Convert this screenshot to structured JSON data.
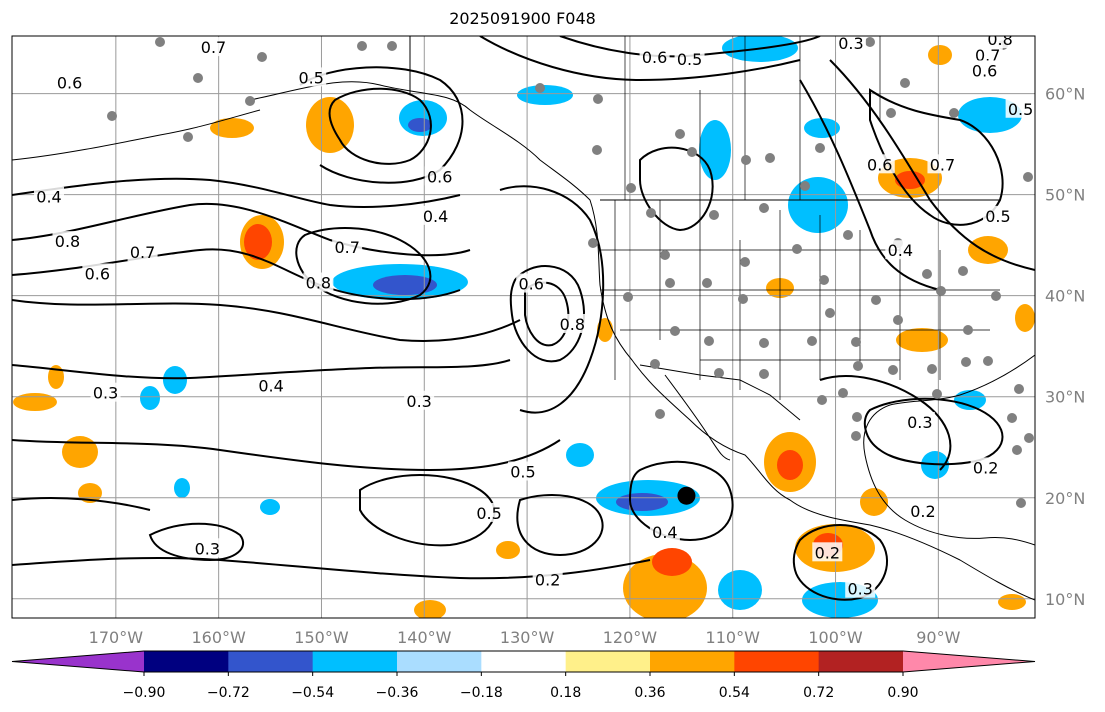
{
  "title": "2025091900 F048",
  "map": {
    "lon_labels": [
      "170°W",
      "160°W",
      "150°W",
      "140°W",
      "130°W",
      "120°W",
      "110°W",
      "100°W",
      "90°W"
    ],
    "lat_labels": [
      "60°N",
      "50°N",
      "40°N",
      "30°N",
      "20°N",
      "10°N"
    ],
    "grid": true
  },
  "contour_labels": [
    {
      "text": "0.6",
      "lon": -174.5,
      "lat": 61.1
    },
    {
      "text": "0.7",
      "lon": -160.5,
      "lat": 64.6
    },
    {
      "text": "0.5",
      "lon": -151.0,
      "lat": 61.6
    },
    {
      "text": "0.6",
      "lon": -138.5,
      "lat": 51.8
    },
    {
      "text": "0.4",
      "lon": -176.5,
      "lat": 49.8
    },
    {
      "text": "0.8",
      "lon": -174.7,
      "lat": 45.4
    },
    {
      "text": "0.7",
      "lon": -167.4,
      "lat": 44.3
    },
    {
      "text": "0.6",
      "lon": -171.8,
      "lat": 42.2
    },
    {
      "text": "0.7",
      "lon": -147.5,
      "lat": 44.8
    },
    {
      "text": "0.8",
      "lon": -150.3,
      "lat": 41.3
    },
    {
      "text": "0.4",
      "lon": -138.9,
      "lat": 47.9
    },
    {
      "text": "0.6",
      "lon": -129.6,
      "lat": 41.2
    },
    {
      "text": "0.8",
      "lon": -125.6,
      "lat": 37.2
    },
    {
      "text": "0.3",
      "lon": -171.0,
      "lat": 30.4
    },
    {
      "text": "0.4",
      "lon": -154.9,
      "lat": 31.1
    },
    {
      "text": "0.3",
      "lon": -140.5,
      "lat": 29.6
    },
    {
      "text": "0.5",
      "lon": -130.4,
      "lat": 22.6
    },
    {
      "text": "0.5",
      "lon": -133.7,
      "lat": 18.5
    },
    {
      "text": "0.4",
      "lon": -116.6,
      "lat": 16.6
    },
    {
      "text": "0.3",
      "lon": -161.1,
      "lat": 15.0
    },
    {
      "text": "0.2",
      "lon": -128.0,
      "lat": 11.9
    },
    {
      "text": "0.3",
      "lon": -91.8,
      "lat": 27.5
    },
    {
      "text": "0.2",
      "lon": -85.4,
      "lat": 23.0
    },
    {
      "text": "0.2",
      "lon": -91.5,
      "lat": 18.7
    },
    {
      "text": "0.2",
      "lon": -100.8,
      "lat": 14.6
    },
    {
      "text": "0.3",
      "lon": -97.6,
      "lat": 11.0
    },
    {
      "text": "0.6",
      "lon": -117.6,
      "lat": 63.6
    },
    {
      "text": "0.5",
      "lon": -114.2,
      "lat": 63.4
    },
    {
      "text": "0.3",
      "lon": -98.5,
      "lat": 65.0
    },
    {
      "text": "0.8",
      "lon": -84.0,
      "lat": 65.4
    },
    {
      "text": "0.7",
      "lon": -85.2,
      "lat": 63.8
    },
    {
      "text": "0.6",
      "lon": -85.5,
      "lat": 62.3
    },
    {
      "text": "0.5",
      "lon": -82.0,
      "lat": 58.5
    },
    {
      "text": "0.6",
      "lon": -95.7,
      "lat": 53.0
    },
    {
      "text": "0.7",
      "lon": -89.6,
      "lat": 53.0
    },
    {
      "text": "0.5",
      "lon": -84.2,
      "lat": 47.9
    },
    {
      "text": "0.4",
      "lon": -93.7,
      "lat": 44.5
    }
  ],
  "marker": {
    "lon": -114.5,
    "lat": 20.2
  },
  "colorbar": {
    "ticks": [
      "−0.90",
      "−0.72",
      "−0.54",
      "−0.36",
      "−0.18",
      "0.18",
      "0.36",
      "0.54",
      "0.72",
      "0.90"
    ],
    "colors": [
      "#9933cc",
      "#000080",
      "#3355cc",
      "#00bfff",
      "#aaddff",
      "#ffffff",
      "#fff08a",
      "#ffa500",
      "#ff4500",
      "#b22222",
      "#ff88aa"
    ]
  }
}
